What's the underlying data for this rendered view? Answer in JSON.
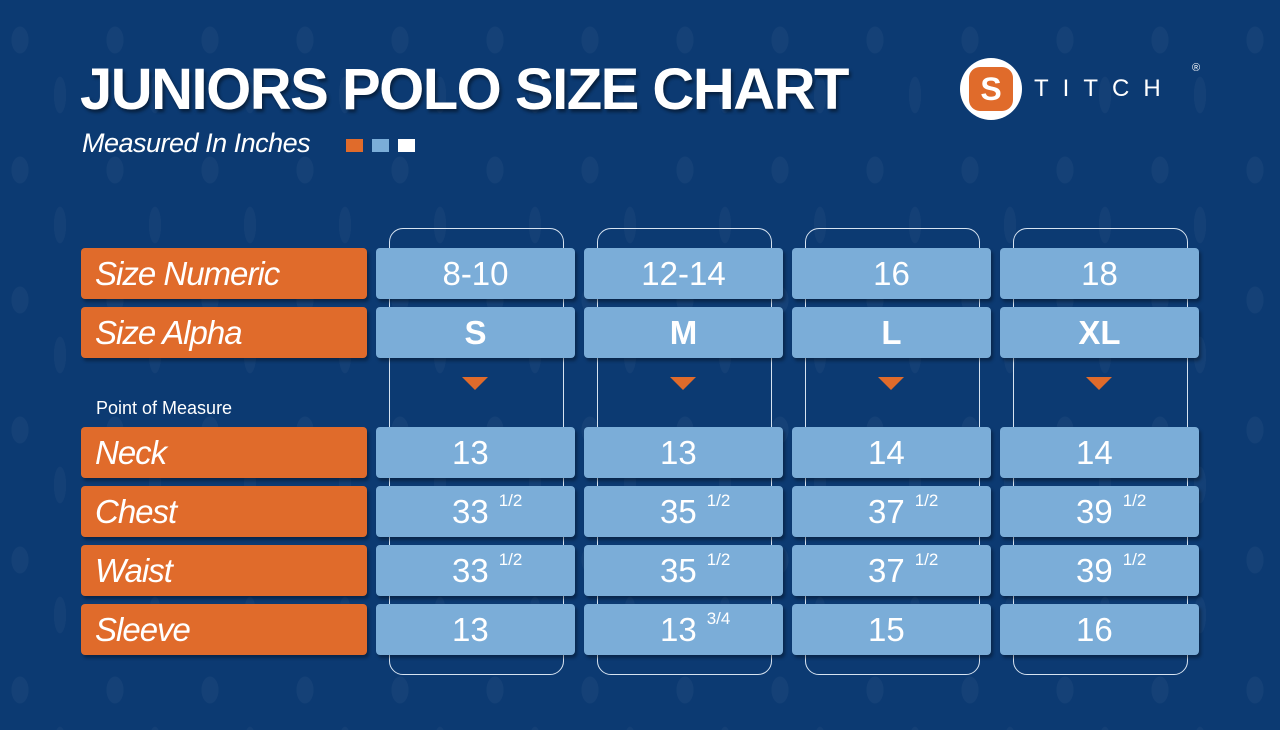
{
  "title": "JUNIORS POLO SIZE CHART",
  "subtitle": "Measured In Inches",
  "legend_colors": [
    "#e06b2b",
    "#7badd8",
    "#ffffff"
  ],
  "brand": {
    "logo_letter": "S",
    "name": "TITCH",
    "registered": "®"
  },
  "colors": {
    "background": "#0c3a72",
    "label": "#e06b2b",
    "cell": "#7badd8"
  },
  "point_of_measure_label": "Point of Measure",
  "sizes": [
    {
      "numeric": "8-10",
      "alpha": "S"
    },
    {
      "numeric": "12-14",
      "alpha": "M"
    },
    {
      "numeric": "16",
      "alpha": "L"
    },
    {
      "numeric": "18",
      "alpha": "XL"
    }
  ],
  "header_rows": [
    {
      "label": "Size Numeric"
    },
    {
      "label": "Size Alpha"
    }
  ],
  "measures": [
    {
      "label": "Neck",
      "values": [
        {
          "whole": "13",
          "frac": ""
        },
        {
          "whole": "13",
          "frac": ""
        },
        {
          "whole": "14",
          "frac": ""
        },
        {
          "whole": "14",
          "frac": ""
        }
      ]
    },
    {
      "label": "Chest",
      "values": [
        {
          "whole": "33",
          "frac": "1/2"
        },
        {
          "whole": "35",
          "frac": "1/2"
        },
        {
          "whole": "37",
          "frac": "1/2"
        },
        {
          "whole": "39",
          "frac": "1/2"
        }
      ]
    },
    {
      "label": "Waist",
      "values": [
        {
          "whole": "33",
          "frac": "1/2"
        },
        {
          "whole": "35",
          "frac": "1/2"
        },
        {
          "whole": "37",
          "frac": "1/2"
        },
        {
          "whole": "39",
          "frac": "1/2"
        }
      ]
    },
    {
      "label": "Sleeve",
      "values": [
        {
          "whole": "13",
          "frac": ""
        },
        {
          "whole": "13",
          "frac": "3/4"
        },
        {
          "whole": "15",
          "frac": ""
        },
        {
          "whole": "16",
          "frac": ""
        }
      ]
    }
  ]
}
